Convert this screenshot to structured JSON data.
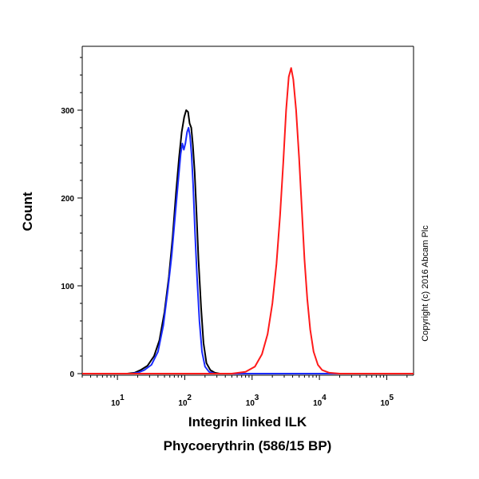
{
  "chart_data": {
    "type": "line",
    "xlabel": "Integrin linked ILK",
    "xlabel2": "Phycoerythrin (586/15 BP)",
    "ylabel": "Count",
    "x_scale": "log",
    "xlim": [
      3,
      250000
    ],
    "ylim": [
      0,
      360
    ],
    "y_ticks": [
      0,
      100,
      200,
      300
    ],
    "x_ticks": [
      {
        "value": 10,
        "base": "10",
        "exp": "1"
      },
      {
        "value": 100,
        "base": "10",
        "exp": "2"
      },
      {
        "value": 1000,
        "base": "10",
        "exp": "3"
      },
      {
        "value": 10000,
        "base": "10",
        "exp": "4"
      },
      {
        "value": 100000,
        "base": "10",
        "exp": "5"
      }
    ],
    "copyright": "Copyright (c) 2016 Abcam Plc",
    "grid": false,
    "series": [
      {
        "color": "#000000",
        "x": [
          3,
          14,
          18,
          22,
          28,
          35,
          42,
          50,
          58,
          66,
          74,
          82,
          90,
          98,
          105,
          112,
          118,
          125,
          132,
          140,
          150,
          160,
          175,
          190,
          210,
          240,
          280,
          330,
          400,
          1000,
          100000,
          250000
        ],
        "y": [
          0,
          0,
          1,
          4,
          9,
          20,
          38,
          70,
          110,
          155,
          205,
          245,
          275,
          292,
          300,
          298,
          285,
          280,
          260,
          230,
          180,
          130,
          75,
          35,
          12,
          4,
          1,
          0,
          0,
          0,
          0,
          0
        ]
      },
      {
        "color": "#1a2bff",
        "x": [
          3,
          16,
          20,
          25,
          32,
          40,
          48,
          56,
          64,
          72,
          80,
          87,
          92,
          97,
          102,
          108,
          114,
          120,
          126,
          133,
          142,
          152,
          165,
          180,
          200,
          230,
          280,
          1000,
          100000,
          250000
        ],
        "y": [
          0,
          0,
          1,
          4,
          10,
          25,
          55,
          95,
          135,
          180,
          220,
          250,
          262,
          255,
          262,
          275,
          280,
          270,
          250,
          215,
          160,
          110,
          60,
          25,
          8,
          2,
          0,
          0,
          0,
          0
        ]
      },
      {
        "color": "#ff1a1a",
        "x": [
          3,
          500,
          800,
          1100,
          1400,
          1700,
          2000,
          2300,
          2600,
          2900,
          3200,
          3500,
          3800,
          4100,
          4500,
          5000,
          5500,
          6000,
          6600,
          7300,
          8200,
          9500,
          11000,
          14000,
          20000,
          100000,
          250000
        ],
        "y": [
          0,
          0,
          2,
          8,
          22,
          45,
          80,
          125,
          180,
          240,
          300,
          338,
          348,
          335,
          300,
          245,
          185,
          130,
          85,
          50,
          25,
          10,
          4,
          1,
          0,
          0,
          0
        ]
      }
    ]
  }
}
